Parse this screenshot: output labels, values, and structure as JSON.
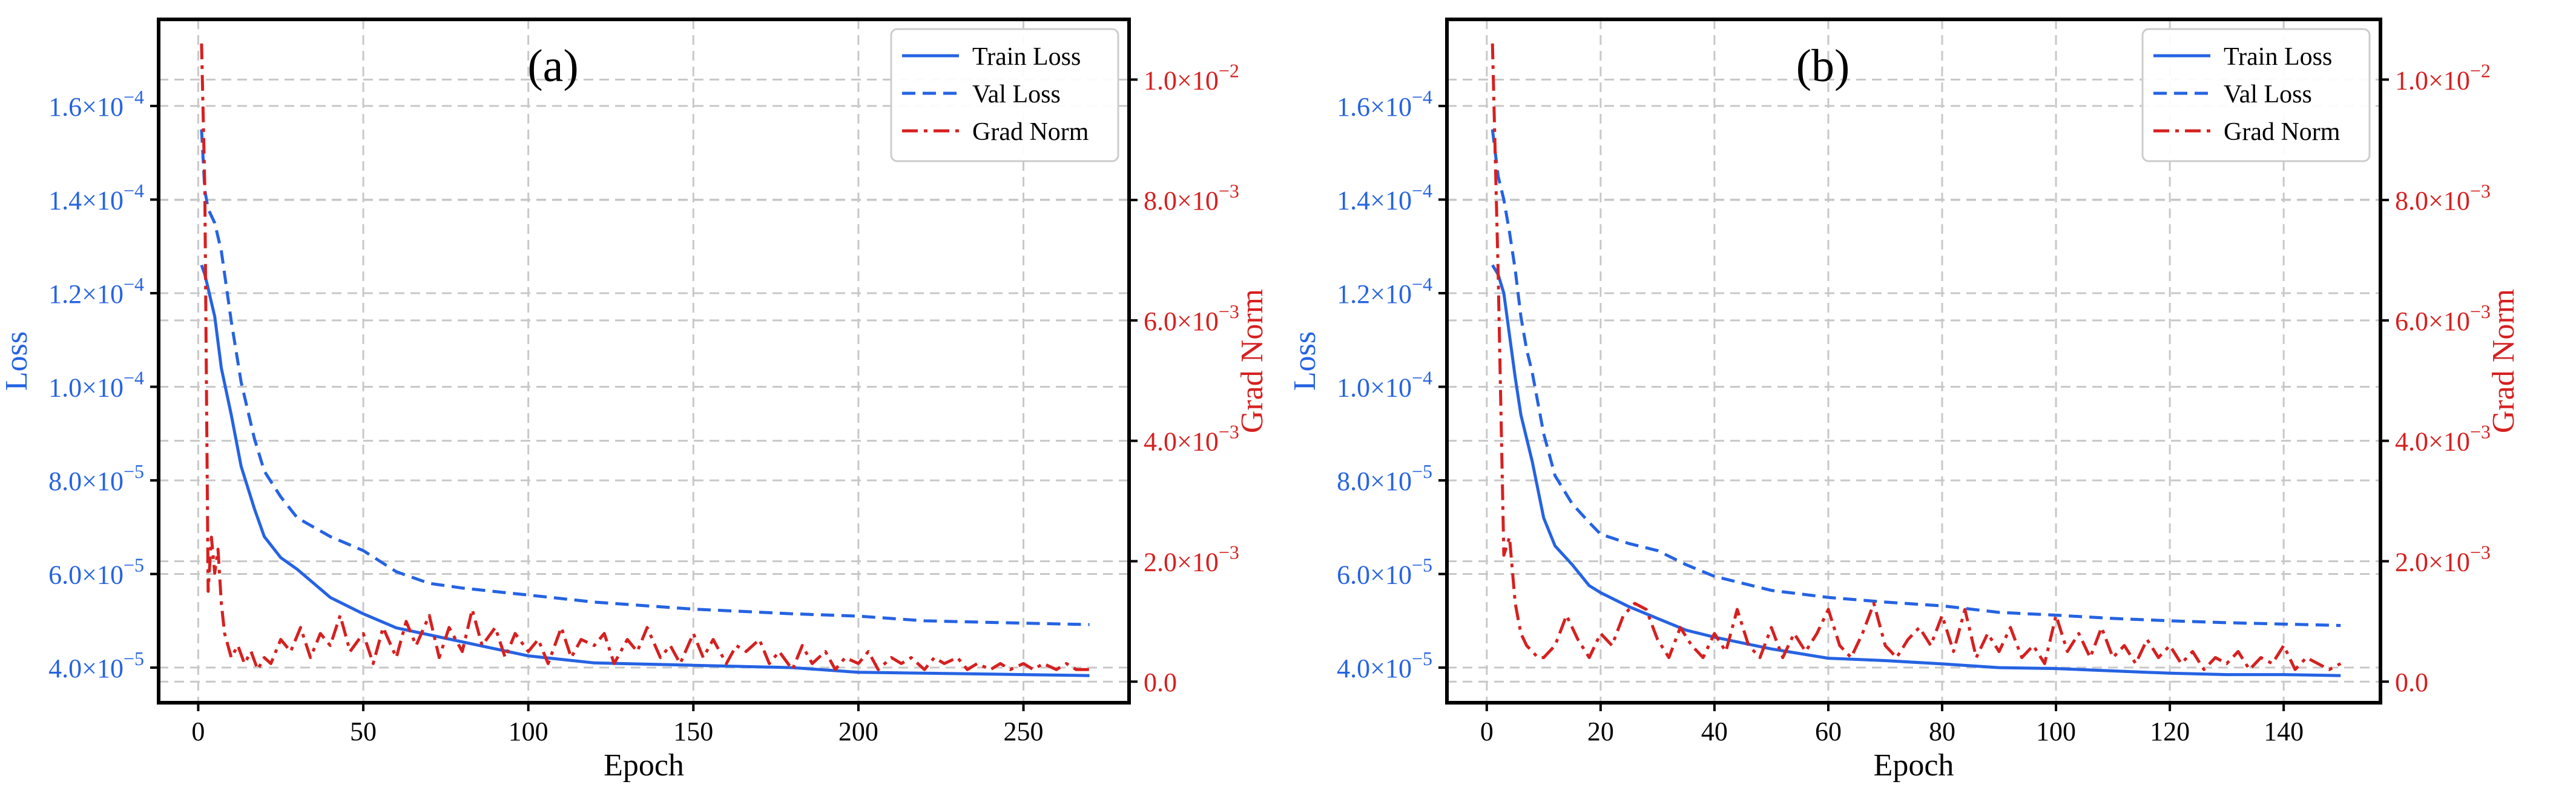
{
  "colors": {
    "train": "#2563e3",
    "val": "#2563e3",
    "grad": "#d62020",
    "grid": "#c8c8c8",
    "axis": "#000000"
  },
  "chart_data": [
    {
      "panel": "(a)",
      "type": "line",
      "xlabel": "Epoch",
      "ylabel": "Loss",
      "y2label": "Grad Norm",
      "xlim": [
        -12,
        282
      ],
      "ylim": [
        3.25e-05,
        0.0001785
      ],
      "y2lim": [
        -0.00035,
        0.011
      ],
      "xticks": [
        0,
        50,
        100,
        150,
        200,
        250
      ],
      "xtick_labels": [
        "0",
        "50",
        "100",
        "150",
        "200",
        "250"
      ],
      "yticks": [
        4e-05,
        6e-05,
        8e-05,
        0.0001,
        0.00012,
        0.00014,
        0.00016
      ],
      "ytick_labels": [
        "4.0×10",
        "6.0×10",
        "8.0×10",
        "1.0×10",
        "1.2×10",
        "1.4×10",
        "1.6×10"
      ],
      "ytick_exponents": [
        "−5",
        "−5",
        "−5",
        "−4",
        "−4",
        "−4",
        "−4"
      ],
      "y2ticks": [
        0.0,
        0.002,
        0.004,
        0.006,
        0.008,
        0.01
      ],
      "y2tick_labels": [
        "0.0",
        "2.0×10",
        "4.0×10",
        "6.0×10",
        "8.0×10",
        "1.0×10"
      ],
      "y2tick_exponents": [
        "",
        "−3",
        "−3",
        "−3",
        "−3",
        "−2"
      ],
      "legend": [
        "Train Loss",
        "Val Loss",
        "Grad Norm"
      ],
      "legend_position": "top-right",
      "grid": true,
      "series": [
        {
          "name": "Train Loss",
          "axis": "left",
          "style": "solid",
          "x": [
            1,
            2,
            3,
            5,
            7,
            10,
            13,
            17,
            20,
            25,
            30,
            40,
            50,
            60,
            70,
            80,
            100,
            120,
            150,
            180,
            200,
            220,
            250,
            270
          ],
          "values": [
            0.000126,
            0.000124,
            0.000121,
            0.000115,
            0.000104,
            9.4e-05,
            8.3e-05,
            7.4e-05,
            6.8e-05,
            6.35e-05,
            6.1e-05,
            5.5e-05,
            5.15e-05,
            4.85e-05,
            4.7e-05,
            4.55e-05,
            4.25e-05,
            4.1e-05,
            4.05e-05,
            4e-05,
            3.9e-05,
            3.88e-05,
            3.85e-05,
            3.83e-05
          ]
        },
        {
          "name": "Val Loss",
          "axis": "left",
          "style": "dashed",
          "x": [
            1,
            2,
            3,
            5,
            7,
            10,
            13,
            17,
            20,
            25,
            30,
            40,
            50,
            60,
            70,
            80,
            100,
            120,
            150,
            180,
            200,
            220,
            250,
            270
          ],
          "values": [
            0.000155,
            0.000142,
            0.000138,
            0.000135,
            0.000129,
            0.000114,
            0.000101,
            8.9e-05,
            8.2e-05,
            7.65e-05,
            7.2e-05,
            6.8e-05,
            6.5e-05,
            6.05e-05,
            5.8e-05,
            5.7e-05,
            5.55e-05,
            5.4e-05,
            5.25e-05,
            5.15e-05,
            5.1e-05,
            5e-05,
            4.95e-05,
            4.92e-05
          ]
        },
        {
          "name": "Grad Norm",
          "axis": "right",
          "style": "dashdot",
          "x": [
            1,
            2,
            3,
            4,
            5,
            6,
            7,
            8,
            9,
            10,
            12,
            14,
            16,
            18,
            20,
            22,
            25,
            28,
            31,
            34,
            37,
            40,
            43,
            46,
            50,
            53,
            56,
            60,
            63,
            66,
            70,
            73,
            76,
            80,
            83,
            86,
            90,
            93,
            96,
            100,
            103,
            106,
            110,
            113,
            116,
            120,
            123,
            126,
            130,
            133,
            136,
            140,
            143,
            146,
            150,
            153,
            156,
            160,
            163,
            166,
            170,
            173,
            176,
            180,
            183,
            186,
            190,
            193,
            196,
            200,
            203,
            206,
            210,
            213,
            216,
            220,
            223,
            226,
            230,
            233,
            236,
            240,
            243,
            246,
            250,
            253,
            256,
            260,
            263,
            266,
            270
          ],
          "values": [
            0.0106,
            0.0082,
            0.0015,
            0.0024,
            0.0018,
            0.0022,
            0.0013,
            0.0008,
            0.0006,
            0.0004,
            0.0006,
            0.0003,
            0.0005,
            0.0002,
            0.0004,
            0.0003,
            0.0007,
            0.0005,
            0.0009,
            0.0004,
            0.0008,
            0.0006,
            0.0011,
            0.0005,
            0.0008,
            0.0003,
            0.0009,
            0.0004,
            0.001,
            0.0006,
            0.0011,
            0.0004,
            0.0009,
            0.0005,
            0.0012,
            0.0006,
            0.0009,
            0.0004,
            0.0008,
            0.0005,
            0.0007,
            0.0003,
            0.0009,
            0.0004,
            0.0007,
            0.0006,
            0.0008,
            0.0003,
            0.0007,
            0.0005,
            0.0009,
            0.0004,
            0.0006,
            0.0003,
            0.0008,
            0.0004,
            0.0007,
            0.0003,
            0.0006,
            0.0005,
            0.0007,
            0.0003,
            0.0005,
            0.0002,
            0.0006,
            0.0003,
            0.0005,
            0.0002,
            0.0004,
            0.0003,
            0.0005,
            0.0002,
            0.0004,
            0.0003,
            0.0004,
            0.0002,
            0.0004,
            0.0003,
            0.0004,
            0.0002,
            0.0003,
            0.0002,
            0.0003,
            0.0002,
            0.0003,
            0.0002,
            0.0003,
            0.0002,
            0.0003,
            0.0002,
            0.0002
          ]
        }
      ]
    },
    {
      "panel": "(b)",
      "type": "line",
      "xlabel": "Epoch",
      "ylabel": "Loss",
      "y2label": "Grad Norm",
      "xlim": [
        -7,
        157
      ],
      "ylim": [
        3.25e-05,
        0.0001785
      ],
      "y2lim": [
        -0.00035,
        0.011
      ],
      "xticks": [
        0,
        20,
        40,
        60,
        80,
        100,
        120,
        140
      ],
      "xtick_labels": [
        "0",
        "20",
        "40",
        "60",
        "80",
        "100",
        "120",
        "140"
      ],
      "yticks": [
        4e-05,
        6e-05,
        8e-05,
        0.0001,
        0.00012,
        0.00014,
        0.00016
      ],
      "ytick_labels": [
        "4.0×10",
        "6.0×10",
        "8.0×10",
        "1.0×10",
        "1.2×10",
        "1.4×10",
        "1.6×10"
      ],
      "ytick_exponents": [
        "−5",
        "−5",
        "−5",
        "−4",
        "−4",
        "−4",
        "−4"
      ],
      "y2ticks": [
        0.0,
        0.002,
        0.004,
        0.006,
        0.008,
        0.01
      ],
      "y2tick_labels": [
        "0.0",
        "2.0×10",
        "4.0×10",
        "6.0×10",
        "8.0×10",
        "1.0×10"
      ],
      "y2tick_exponents": [
        "",
        "−3",
        "−3",
        "−3",
        "−3",
        "−2"
      ],
      "legend": [
        "Train Loss",
        "Val Loss",
        "Grad Norm"
      ],
      "legend_position": "top-right",
      "grid": true,
      "series": [
        {
          "name": "Train Loss",
          "axis": "left",
          "style": "solid",
          "x": [
            1,
            2,
            3,
            4,
            5,
            6,
            7,
            8,
            10,
            12,
            15,
            18,
            20,
            25,
            30,
            35,
            40,
            50,
            60,
            70,
            80,
            90,
            100,
            110,
            120,
            130,
            140,
            150
          ],
          "values": [
            0.000126,
            0.000124,
            0.00012,
            0.000111,
            0.000102,
            9.4e-05,
            8.9e-05,
            8.4e-05,
            7.2e-05,
            6.6e-05,
            6.2e-05,
            5.75e-05,
            5.6e-05,
            5.3e-05,
            5.05e-05,
            4.8e-05,
            4.65e-05,
            4.4e-05,
            4.2e-05,
            4.15e-05,
            4.08e-05,
            4e-05,
            3.98e-05,
            3.93e-05,
            3.88e-05,
            3.85e-05,
            3.85e-05,
            3.83e-05
          ]
        },
        {
          "name": "Val Loss",
          "axis": "left",
          "style": "dashed",
          "x": [
            1,
            2,
            3,
            4,
            5,
            6,
            7,
            8,
            10,
            12,
            15,
            18,
            20,
            25,
            30,
            35,
            40,
            50,
            60,
            70,
            80,
            90,
            100,
            110,
            120,
            130,
            140,
            150
          ],
          "values": [
            0.000155,
            0.000145,
            0.00014,
            0.000133,
            0.000125,
            0.000115,
            0.000108,
            0.000103,
            9e-05,
            8.1e-05,
            7.5e-05,
            7.1e-05,
            6.85e-05,
            6.65e-05,
            6.5e-05,
            6.2e-05,
            5.95e-05,
            5.65e-05,
            5.5e-05,
            5.4e-05,
            5.32e-05,
            5.18e-05,
            5.12e-05,
            5.05e-05,
            5e-05,
            4.96e-05,
            4.93e-05,
            4.9e-05
          ]
        },
        {
          "name": "Grad Norm",
          "axis": "right",
          "style": "dashdot",
          "x": [
            1,
            2,
            3,
            4,
            5,
            6,
            7,
            8,
            9,
            10,
            12,
            14,
            16,
            18,
            20,
            22,
            24,
            26,
            28,
            30,
            32,
            34,
            36,
            38,
            40,
            42,
            44,
            46,
            48,
            50,
            52,
            54,
            56,
            58,
            60,
            62,
            64,
            66,
            68,
            70,
            72,
            74,
            76,
            78,
            80,
            82,
            84,
            86,
            88,
            90,
            92,
            94,
            96,
            98,
            100,
            102,
            104,
            106,
            108,
            110,
            112,
            114,
            116,
            118,
            120,
            122,
            124,
            126,
            128,
            130,
            132,
            134,
            136,
            138,
            140,
            142,
            144,
            146,
            148,
            150
          ],
          "values": [
            0.0106,
            0.0068,
            0.0021,
            0.0024,
            0.0013,
            0.0008,
            0.0006,
            0.0005,
            0.0004,
            0.0004,
            0.0006,
            0.0011,
            0.0007,
            0.0004,
            0.0008,
            0.0006,
            0.0011,
            0.0013,
            0.0012,
            0.0007,
            0.0004,
            0.0009,
            0.0006,
            0.0004,
            0.0008,
            0.0005,
            0.0012,
            0.0006,
            0.0004,
            0.0009,
            0.0004,
            0.0008,
            0.0005,
            0.0008,
            0.0012,
            0.0006,
            0.0004,
            0.0008,
            0.0013,
            0.0006,
            0.0004,
            0.0007,
            0.0009,
            0.0006,
            0.0011,
            0.0005,
            0.0012,
            0.0004,
            0.0008,
            0.0005,
            0.0009,
            0.0004,
            0.0006,
            0.0003,
            0.0011,
            0.0005,
            0.0008,
            0.0004,
            0.0009,
            0.0004,
            0.0006,
            0.0003,
            0.0007,
            0.0004,
            0.0006,
            0.0003,
            0.0005,
            0.0002,
            0.0004,
            0.0003,
            0.0005,
            0.0002,
            0.0004,
            0.0003,
            0.0006,
            0.0002,
            0.0004,
            0.0003,
            0.0002,
            0.0003
          ]
        }
      ]
    }
  ]
}
